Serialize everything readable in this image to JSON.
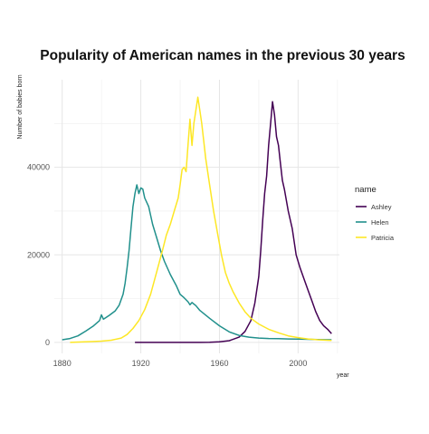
{
  "chart_data": {
    "type": "line",
    "title": "Popularity of American names in the previous 30 years",
    "xlabel": "year",
    "ylabel": "Number of babies born",
    "xlim": [
      1876,
      2021
    ],
    "ylim": [
      -2500,
      60000
    ],
    "x_ticks": [
      1880,
      1920,
      1960,
      2000
    ],
    "y_ticks": [
      0,
      20000,
      40000
    ],
    "x_tick_labels": [
      "1880",
      "1920",
      "1960",
      "2000"
    ],
    "y_tick_labels": [
      "0",
      "20000",
      "40000"
    ],
    "grid": true,
    "legend": {
      "title": "name",
      "position": "right"
    },
    "series": [
      {
        "name": "Ashley",
        "color": "#440154",
        "points": [
          [
            1917,
            0
          ],
          [
            1930,
            0
          ],
          [
            1940,
            0
          ],
          [
            1950,
            0
          ],
          [
            1955,
            50
          ],
          [
            1960,
            150
          ],
          [
            1965,
            400
          ],
          [
            1970,
            1200
          ],
          [
            1973,
            2500
          ],
          [
            1976,
            5000
          ],
          [
            1978,
            9000
          ],
          [
            1980,
            15000
          ],
          [
            1981,
            21000
          ],
          [
            1982,
            28000
          ],
          [
            1983,
            34000
          ],
          [
            1984,
            38000
          ],
          [
            1985,
            45000
          ],
          [
            1986,
            50000
          ],
          [
            1987,
            55000
          ],
          [
            1988,
            52000
          ],
          [
            1989,
            47000
          ],
          [
            1990,
            45000
          ],
          [
            1991,
            41000
          ],
          [
            1992,
            37000
          ],
          [
            1993,
            35000
          ],
          [
            1995,
            30000
          ],
          [
            1997,
            26000
          ],
          [
            1999,
            20000
          ],
          [
            2001,
            17000
          ],
          [
            2003,
            14500
          ],
          [
            2005,
            12000
          ],
          [
            2007,
            9500
          ],
          [
            2009,
            7000
          ],
          [
            2011,
            5000
          ],
          [
            2013,
            3800
          ],
          [
            2015,
            3000
          ],
          [
            2017,
            2000
          ]
        ]
      },
      {
        "name": "Helen",
        "color": "#21908C",
        "points": [
          [
            1880,
            600
          ],
          [
            1884,
            900
          ],
          [
            1888,
            1500
          ],
          [
            1892,
            2600
          ],
          [
            1896,
            3800
          ],
          [
            1899,
            5000
          ],
          [
            1900,
            6300
          ],
          [
            1901,
            5300
          ],
          [
            1902,
            5600
          ],
          [
            1904,
            6200
          ],
          [
            1907,
            7200
          ],
          [
            1909,
            8500
          ],
          [
            1911,
            11000
          ],
          [
            1912,
            13500
          ],
          [
            1913,
            17000
          ],
          [
            1914,
            21000
          ],
          [
            1915,
            26000
          ],
          [
            1916,
            31000
          ],
          [
            1917,
            34000
          ],
          [
            1918,
            36000
          ],
          [
            1919,
            34000
          ],
          [
            1920,
            35300
          ],
          [
            1921,
            35000
          ],
          [
            1922,
            33000
          ],
          [
            1924,
            31000
          ],
          [
            1926,
            27000
          ],
          [
            1928,
            24000
          ],
          [
            1930,
            21000
          ],
          [
            1932,
            18500
          ],
          [
            1935,
            15500
          ],
          [
            1938,
            13000
          ],
          [
            1940,
            11000
          ],
          [
            1942,
            10200
          ],
          [
            1944,
            9300
          ],
          [
            1945,
            8600
          ],
          [
            1946,
            9100
          ],
          [
            1948,
            8400
          ],
          [
            1950,
            7300
          ],
          [
            1955,
            5500
          ],
          [
            1960,
            3800
          ],
          [
            1965,
            2400
          ],
          [
            1970,
            1600
          ],
          [
            1975,
            1200
          ],
          [
            1980,
            1000
          ],
          [
            1985,
            900
          ],
          [
            1990,
            850
          ],
          [
            1995,
            800
          ],
          [
            2000,
            750
          ],
          [
            2005,
            700
          ],
          [
            2010,
            650
          ],
          [
            2017,
            600
          ]
        ]
      },
      {
        "name": "Patricia",
        "color": "#FDE725",
        "points": [
          [
            1884,
            0
          ],
          [
            1890,
            100
          ],
          [
            1895,
            200
          ],
          [
            1900,
            300
          ],
          [
            1905,
            500
          ],
          [
            1910,
            1000
          ],
          [
            1913,
            1800
          ],
          [
            1916,
            3200
          ],
          [
            1919,
            5000
          ],
          [
            1922,
            7500
          ],
          [
            1925,
            11000
          ],
          [
            1928,
            16000
          ],
          [
            1931,
            21000
          ],
          [
            1933,
            24500
          ],
          [
            1935,
            27000
          ],
          [
            1937,
            30000
          ],
          [
            1939,
            33000
          ],
          [
            1940,
            36000
          ],
          [
            1941,
            39500
          ],
          [
            1942,
            40000
          ],
          [
            1943,
            39000
          ],
          [
            1944,
            45000
          ],
          [
            1945,
            51000
          ],
          [
            1946,
            45000
          ],
          [
            1947,
            50000
          ],
          [
            1948,
            53000
          ],
          [
            1949,
            56000
          ],
          [
            1950,
            53000
          ],
          [
            1951,
            50000
          ],
          [
            1952,
            46000
          ],
          [
            1953,
            42000
          ],
          [
            1955,
            36000
          ],
          [
            1957,
            30000
          ],
          [
            1959,
            25000
          ],
          [
            1961,
            20000
          ],
          [
            1963,
            16000
          ],
          [
            1965,
            13500
          ],
          [
            1967,
            11500
          ],
          [
            1970,
            9000
          ],
          [
            1973,
            7000
          ],
          [
            1976,
            5500
          ],
          [
            1980,
            4200
          ],
          [
            1985,
            3000
          ],
          [
            1990,
            2200
          ],
          [
            1995,
            1500
          ],
          [
            2000,
            1100
          ],
          [
            2005,
            800
          ],
          [
            2010,
            600
          ],
          [
            2017,
            450
          ]
        ]
      }
    ]
  }
}
